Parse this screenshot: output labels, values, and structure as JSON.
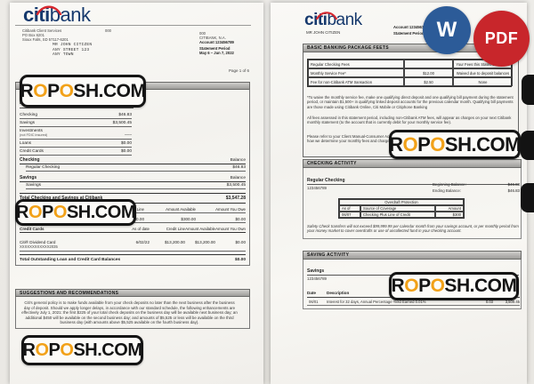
{
  "watermark": {
    "text": "ROPOSH.COM",
    "accent_color": "#f2a118",
    "ink_color": "#141414"
  },
  "export": {
    "word_label": "W",
    "pdf_label": "PDF",
    "word_color": "#2c5b98",
    "pdf_color": "#c8262b"
  },
  "page1": {
    "logo_citi": "citi",
    "logo_bank": "bank",
    "sender_line1": "Citibank Client Services",
    "sender_code": "000",
    "sender_line2": "PO Box 6201",
    "sender_line3": "Sioux Falls, SD 57117-6201",
    "recipient_line1": "MR JOHN CITIZEN",
    "recipient_line2": "ANY STREET 123",
    "recipient_line3": "ANY TOWN",
    "meta_code": "000",
    "meta_bank": "CITIBANK, N.A.",
    "meta_account": "Account 123456789",
    "meta_period_label": "Statement Period",
    "meta_period": "May 6 – Jun 7, 2022",
    "page_label": "Page 1 of 6",
    "section1_fragment": "R",
    "summary": {
      "title": "Relationship Summary:",
      "rows": [
        {
          "label": "Checking",
          "value": "$46.83"
        },
        {
          "label": "Savings",
          "value": "$3,500.45"
        },
        {
          "label": "Investments",
          "sublabel": "(not FDIC insured)",
          "value": "–––"
        },
        {
          "label": "Loans",
          "value": "$0.00"
        },
        {
          "label": "Credit Cards",
          "value": "$0.00"
        }
      ]
    },
    "checking": {
      "header": "Checking",
      "balance": "Balance",
      "name": "Regular Checking",
      "value": "$46.83"
    },
    "savings": {
      "header": "Savings",
      "balance": "Balance",
      "name": "Savings",
      "value": "$3,500.45"
    },
    "total": {
      "label": "Total Checking and Savings at Citibank",
      "value": "$3,547.28"
    },
    "loans": {
      "h1": "Credit Line",
      "h2": "Amount Available",
      "h3": "Amount You Owe",
      "v1": "$300.00",
      "v2": "$300.00",
      "v3": "$0.00"
    },
    "cards": {
      "h0": "Credit Cards",
      "h1": "As of date",
      "h2": "Credit Line",
      "h3": "Amount Available",
      "h4": "Amount You Own",
      "name": "Citi® Dividend Card",
      "number": "XXXXXXXXXXXX2035",
      "as_of": "6/02/22",
      "credit_line": "$13,200.00",
      "available": "$13,200.00",
      "owe": "$0.00"
    },
    "total_outstanding": {
      "label": "Total Outstanding Loan and Credit Card Balances",
      "value": "$0.00"
    },
    "suggestions": {
      "title": "SUGGESTIONS AND RECOMMENDATIONS",
      "body": "Citi's general policy is to make funds available from your check deposits no later than the next business after the business day of deposit. Should we apply longer delays, in accordance with our standard schedule, the following enhancements are effectively July 1, 2021: the first $225 of your total check deposits on the business day will be available next business day; an additional $450 will be available on the second business day; and amounts of $5,525 or less will be available on the third business day (with amounts above $5,525 available on the fourth business day)."
    }
  },
  "page2": {
    "logo_citi": "citi",
    "logo_bank": "bank",
    "customer": "MR JOHN CITIZEN",
    "meta_account": "Account 123456789",
    "meta_period_label": "Statement Period",
    "page_label": "Page 2 of 6",
    "fees": {
      "title": "BASIC BANKING PACKAGE FEETS",
      "table": [
        [
          "Regular Checking Fees",
          "",
          "Your Fees this Statement Period"
        ],
        [
          "Monthly Service Fee*",
          "$12.00",
          "Waived due to deposit balances"
        ],
        [
          "Fee for non-Citibank ATM transaction",
          "$2.50",
          "None"
        ]
      ],
      "note1": "*To waive the monthly service fee, make one qualifying direct deposit and one qualifying bill payment during the statement period, or maintain $1,500+ in qualifying linked deposit accounts for the previous calendar month. Qualifying bill payments are those made using Citibank Online, Citi Mobile or Citiphone Banking",
      "note2": "All fees assessed in this statement period, including non-Citibank ATM fees, will appear as charges on your next Citibank monthly statement (to the account that is currently debit for your monthly service fee).",
      "note3a": "Please refer to your Client Manual-Consumer Accounts and",
      "note3b": "how we determine your monthly fees and charges"
    },
    "checking_activity": {
      "title": "CHECKING ACTIVITY",
      "name": "Regular Checking",
      "number": "123456789",
      "begin_label": "Beginning Balance:",
      "begin_value": "$46.83",
      "end_label": "Ending Balance:",
      "end_value": "$46.83",
      "overdraft": {
        "title": "Overdraft Protection",
        "h1": "As of",
        "h2": "Source of Coverage",
        "h3": "Amount",
        "d1": "06/07",
        "d2": "Checking Plus Line of Credit",
        "d3": "$300"
      },
      "note": "Safety Check transfers will not exceed $99,999.99 per calendar month from your savings account, or per monthly period from your money market to cover overdrafts or use of uncollected fund in your checking account."
    },
    "saving_activity": {
      "title": "SAVING ACTIVITY",
      "name": "Savings",
      "number": "123456789",
      "h_date": "Date",
      "h_desc": "Description",
      "row": {
        "date": "06/01",
        "desc": "Interest for 32 days, Annual Percentage Yield Earned 0.01%",
        "amount": "0.03",
        "balance": "3,500.45"
      }
    }
  }
}
